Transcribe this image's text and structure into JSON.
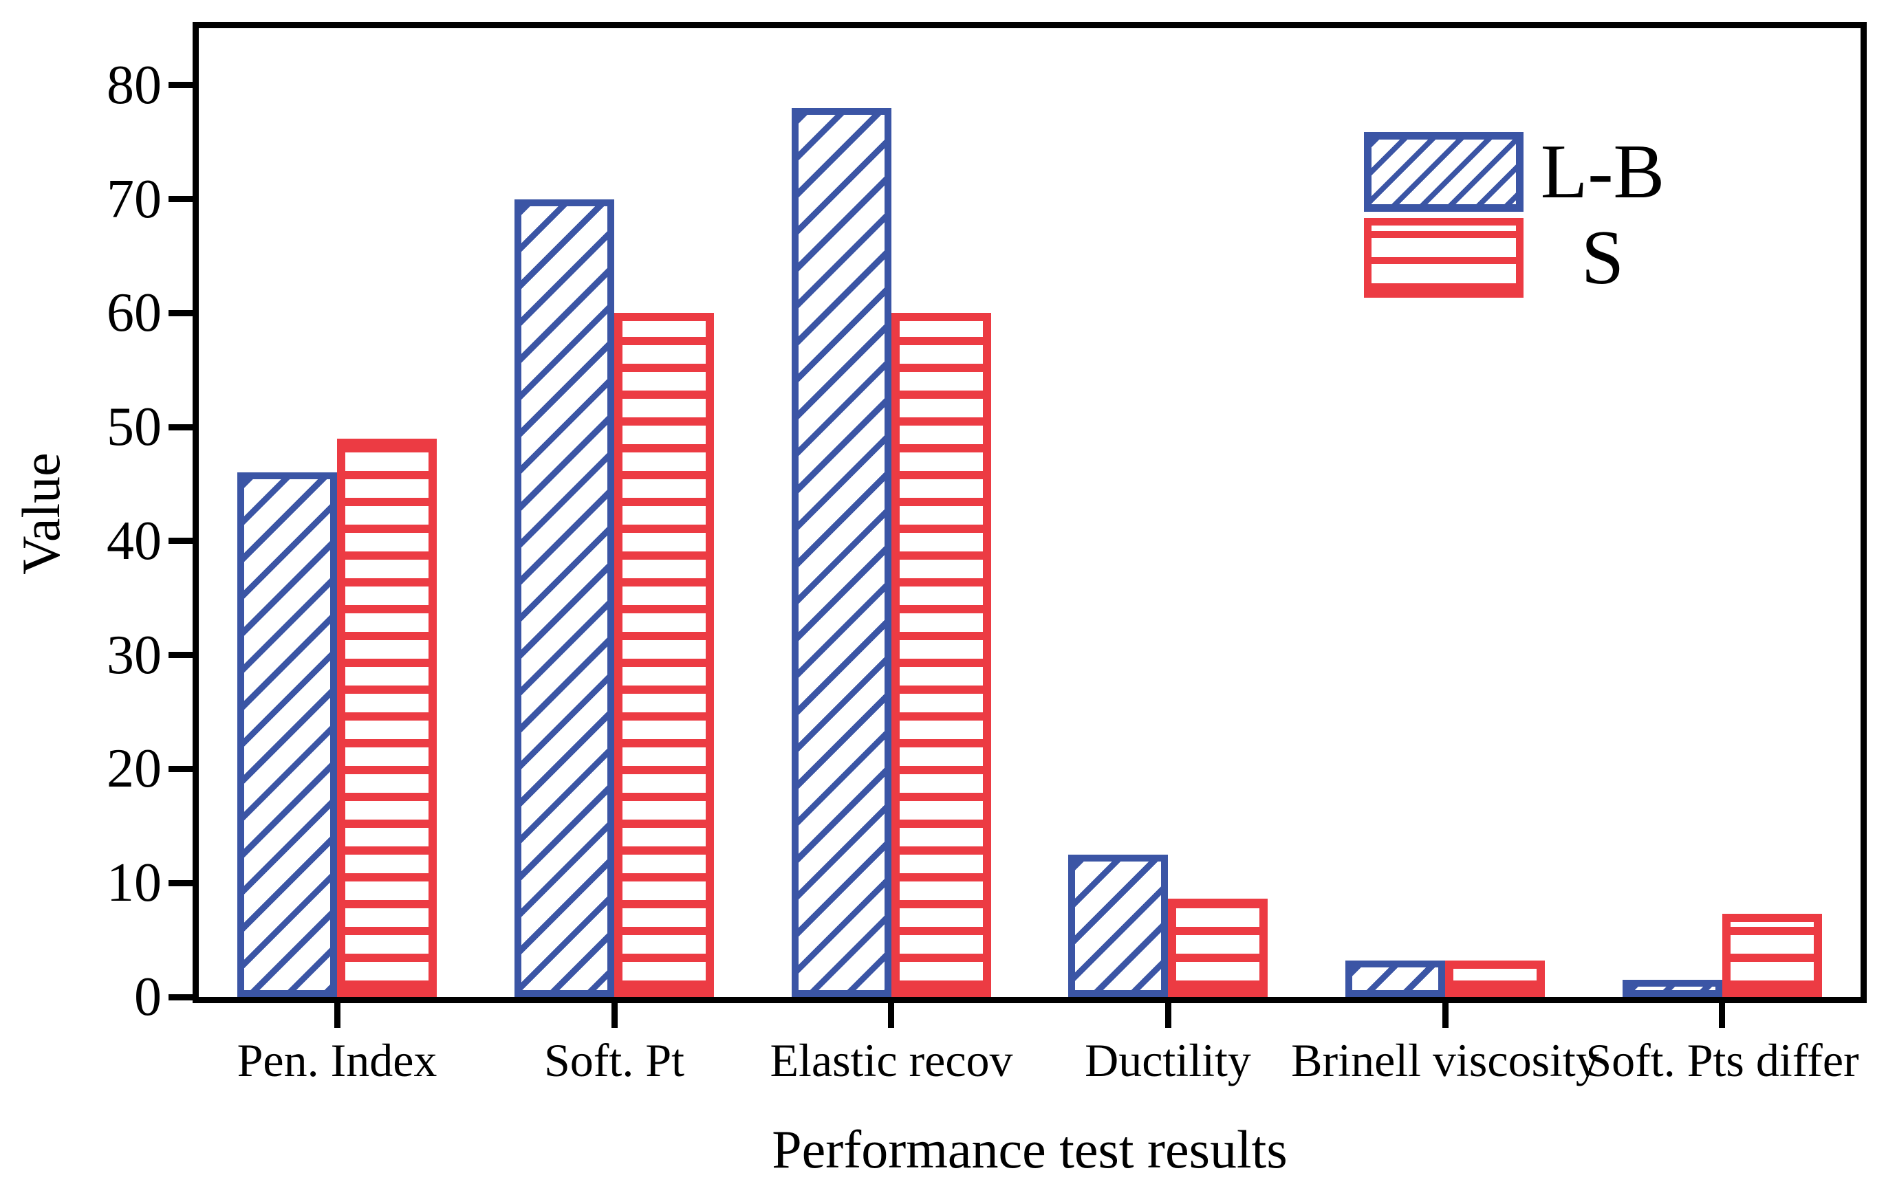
{
  "chart_data": {
    "type": "bar",
    "title": "",
    "xlabel": "Performance test results",
    "ylabel": "Value",
    "categories": [
      "Pen. Index",
      "Soft. Pt",
      "Elastic recov",
      "Ductility",
      "Brinell viscosity",
      "Soft. Pts differ"
    ],
    "series": [
      {
        "name": "L-B",
        "color": "#3b55a5",
        "pattern": "diagonal-hatch",
        "values": [
          46,
          70,
          78,
          12.5,
          3.2,
          1.5
        ]
      },
      {
        "name": "S",
        "color": "#ec3b43",
        "pattern": "horizontal-stripes",
        "values": [
          49,
          60,
          60,
          8.6,
          3.2,
          7.3
        ]
      }
    ],
    "ylim": [
      0,
      85
    ],
    "yticks": [
      0,
      10,
      20,
      30,
      40,
      50,
      60,
      70,
      80
    ],
    "grid": false,
    "legend_position": "top-right"
  }
}
